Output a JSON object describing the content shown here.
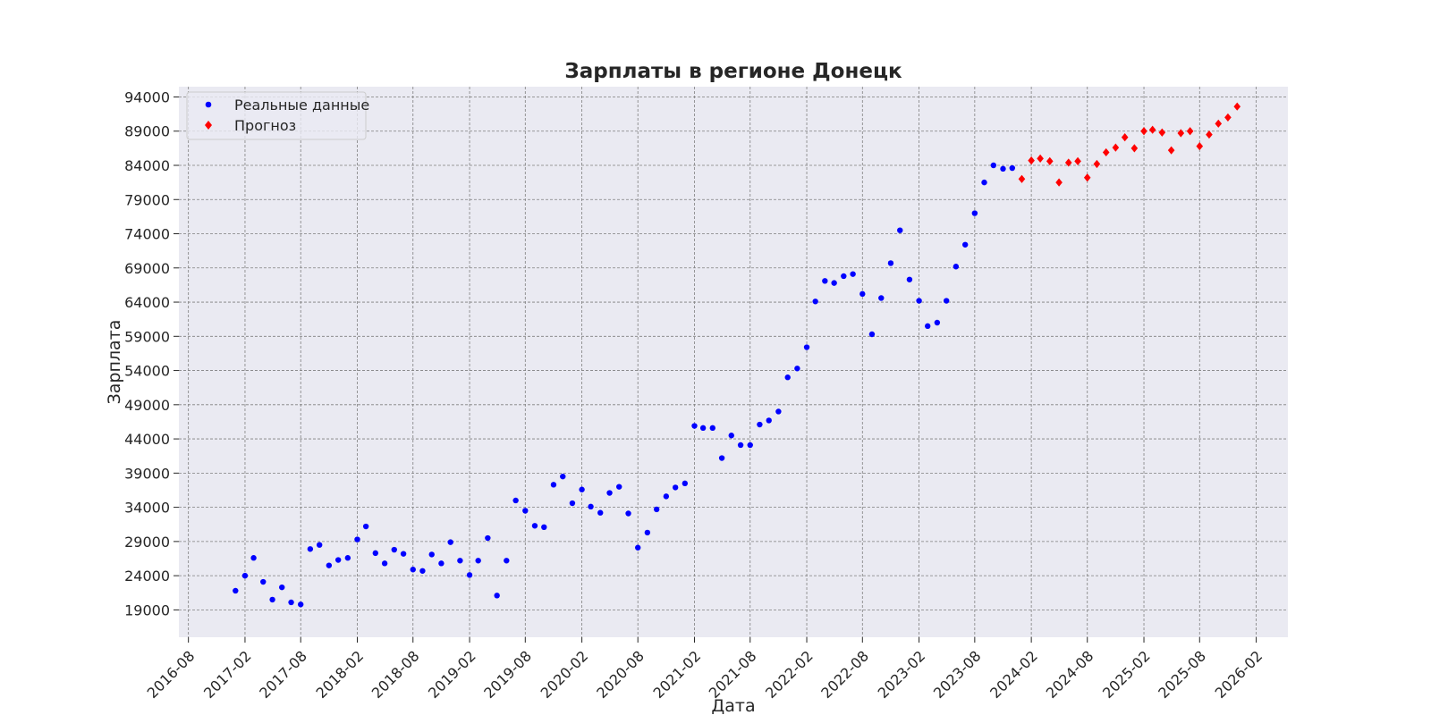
{
  "chart_data": {
    "type": "scatter",
    "title": "Зарплаты в регионе Донецк",
    "xlabel": "Дата",
    "ylabel": "Зарплата",
    "grid": true,
    "legend_position": "top-left",
    "xlim": [
      "2016-07-01",
      "2026-05-15"
    ],
    "ylim": [
      15000,
      95500
    ],
    "x_ticks": [
      "2016-08",
      "2017-02",
      "2017-08",
      "2018-02",
      "2018-08",
      "2019-02",
      "2019-08",
      "2020-02",
      "2020-08",
      "2021-02",
      "2021-08",
      "2022-02",
      "2022-08",
      "2023-02",
      "2023-08",
      "2024-02",
      "2024-08",
      "2025-02",
      "2025-08",
      "2026-02"
    ],
    "y_ticks": [
      19000,
      24000,
      29000,
      34000,
      39000,
      44000,
      49000,
      54000,
      59000,
      64000,
      69000,
      74000,
      79000,
      84000,
      89000,
      94000
    ],
    "series": [
      {
        "name": "Реальные данные",
        "color": "#0000ff",
        "marker": "circle",
        "x": [
          "2017-01",
          "2017-02",
          "2017-03",
          "2017-04",
          "2017-05",
          "2017-06",
          "2017-07",
          "2017-08",
          "2017-09",
          "2017-10",
          "2017-11",
          "2017-12",
          "2018-01",
          "2018-02",
          "2018-03",
          "2018-04",
          "2018-05",
          "2018-06",
          "2018-07",
          "2018-08",
          "2018-09",
          "2018-10",
          "2018-11",
          "2018-12",
          "2019-01",
          "2019-02",
          "2019-03",
          "2019-04",
          "2019-05",
          "2019-06",
          "2019-07",
          "2019-08",
          "2019-09",
          "2019-10",
          "2019-11",
          "2019-12",
          "2020-01",
          "2020-02",
          "2020-03",
          "2020-04",
          "2020-05",
          "2020-06",
          "2020-07",
          "2020-08",
          "2020-09",
          "2020-10",
          "2020-11",
          "2020-12",
          "2021-01",
          "2021-02",
          "2021-03",
          "2021-04",
          "2021-05",
          "2021-06",
          "2021-07",
          "2021-08",
          "2021-09",
          "2021-10",
          "2021-11",
          "2021-12",
          "2022-01",
          "2022-02",
          "2022-03",
          "2022-04",
          "2022-05",
          "2022-06",
          "2022-07",
          "2022-08",
          "2022-09",
          "2022-10",
          "2022-11",
          "2022-12",
          "2023-01",
          "2023-02",
          "2023-03",
          "2023-04",
          "2023-05",
          "2023-06",
          "2023-07",
          "2023-08",
          "2023-09",
          "2023-10",
          "2023-11",
          "2023-12"
        ],
        "y": [
          21800,
          24000,
          26600,
          23100,
          20500,
          22300,
          20100,
          19800,
          27900,
          28500,
          25500,
          26300,
          26600,
          29300,
          31200,
          27300,
          25800,
          27800,
          27200,
          24900,
          24700,
          27100,
          25800,
          28900,
          26200,
          24100,
          26200,
          29500,
          21100,
          26200,
          35000,
          33500,
          31300,
          31100,
          37300,
          38500,
          34600,
          36600,
          34100,
          33200,
          36100,
          37000,
          33100,
          28100,
          30300,
          33700,
          35600,
          36900,
          37500,
          45900,
          45600,
          45600,
          41200,
          44500,
          43100,
          43100,
          46100,
          46700,
          48000,
          53000,
          54300,
          57400,
          64100,
          67100,
          66800,
          67800,
          68100,
          65200,
          59300,
          64600,
          69700,
          74500,
          67300,
          64200,
          60500,
          61000,
          64200,
          69200,
          72400,
          77000,
          81500,
          84000,
          83500,
          83600
        ]
      },
      {
        "name": "Прогноз",
        "color": "#ff0000",
        "marker": "diamond",
        "x": [
          "2024-01",
          "2024-02",
          "2024-03",
          "2024-04",
          "2024-05",
          "2024-06",
          "2024-07",
          "2024-08",
          "2024-09",
          "2024-10",
          "2024-11",
          "2024-12",
          "2025-01",
          "2025-02",
          "2025-03",
          "2025-04",
          "2025-05",
          "2025-06",
          "2025-07",
          "2025-08",
          "2025-09",
          "2025-10",
          "2025-11",
          "2025-12"
        ],
        "y": [
          82000,
          84700,
          85000,
          84600,
          81500,
          84400,
          84600,
          82200,
          84200,
          85900,
          86600,
          88100,
          86500,
          89000,
          89200,
          88800,
          86200,
          88700,
          89000,
          86800,
          88500,
          90100,
          91000,
          92600
        ]
      }
    ]
  }
}
